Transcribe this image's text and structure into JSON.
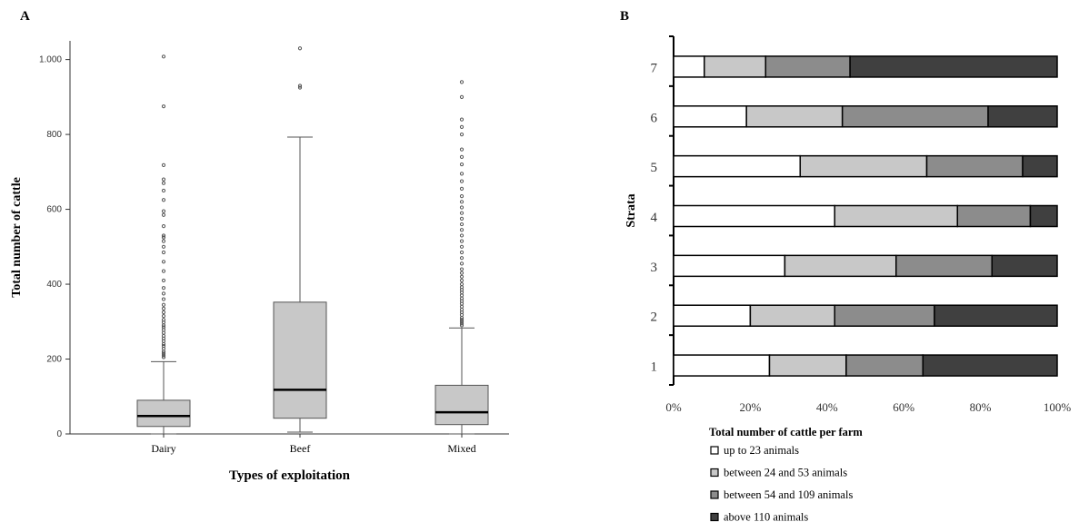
{
  "chart_data": [
    {
      "panel": "A",
      "type": "box",
      "xlabel": "Types of exploitation",
      "ylabel": "Total number of cattle",
      "ylim": [
        0,
        1050
      ],
      "yticks": [
        0,
        200,
        400,
        600,
        800,
        1000
      ],
      "ytick_labels": [
        "0",
        "200",
        "400",
        "600",
        "800",
        "1.000"
      ],
      "categories": [
        "Dairy",
        "Beef",
        "Mixed"
      ],
      "boxes": [
        {
          "name": "Dairy",
          "whisker_low": 0,
          "q1": 20,
          "median": 48,
          "q3": 90,
          "whisker_high": 193,
          "outliers": [
            205,
            210,
            215,
            220,
            228,
            235,
            240,
            248,
            255,
            262,
            270,
            278,
            285,
            290,
            298,
            305,
            315,
            325,
            335,
            345,
            360,
            375,
            390,
            410,
            435,
            460,
            485,
            500,
            515,
            525,
            530,
            555,
            585,
            595,
            625,
            650,
            670,
            680,
            718,
            875,
            1008
          ]
        },
        {
          "name": "Beef",
          "whisker_low": 5,
          "q1": 42,
          "median": 118,
          "q3": 352,
          "whisker_high": 793,
          "outliers": [
            925,
            930,
            1030
          ]
        },
        {
          "name": "Mixed",
          "whisker_low": 0,
          "q1": 25,
          "median": 58,
          "q3": 130,
          "whisker_high": 283,
          "outliers": [
            290,
            295,
            300,
            305,
            310,
            318,
            325,
            332,
            340,
            348,
            355,
            362,
            370,
            378,
            385,
            392,
            400,
            410,
            420,
            430,
            440,
            455,
            470,
            485,
            500,
            515,
            530,
            545,
            560,
            575,
            590,
            605,
            620,
            635,
            655,
            675,
            695,
            720,
            740,
            760,
            800,
            820,
            840,
            900,
            940
          ]
        }
      ]
    },
    {
      "panel": "B",
      "type": "bar",
      "orientation": "horizontal",
      "stacked": true,
      "ylabel": "Strata",
      "categories": [
        "1",
        "2",
        "3",
        "4",
        "5",
        "6",
        "7"
      ],
      "xlim": [
        0,
        100
      ],
      "xticks": [
        0,
        20,
        40,
        60,
        80,
        100
      ],
      "xtick_labels": [
        "0%",
        "20%",
        "40%",
        "60%",
        "80%",
        "100%"
      ],
      "legend_title": "Total number of cattle per farm",
      "legend_position": "bottom",
      "series": [
        {
          "name": "up to 23 animals",
          "color": "#ffffff",
          "values": [
            25,
            20,
            29,
            42,
            33,
            19,
            8
          ]
        },
        {
          "name": "between 24 and 53 animals",
          "color": "#c8c8c8",
          "values": [
            20,
            22,
            29,
            32,
            33,
            25,
            16
          ]
        },
        {
          "name": "between 54 and 109 animals",
          "color": "#8c8c8c",
          "values": [
            20,
            26,
            25,
            19,
            25,
            38,
            22
          ]
        },
        {
          "name": "above 110 animals",
          "color": "#404040",
          "values": [
            35,
            32,
            17,
            7,
            9,
            18,
            54
          ]
        }
      ]
    }
  ],
  "panel_a_label": "A",
  "panel_b_label": "B"
}
